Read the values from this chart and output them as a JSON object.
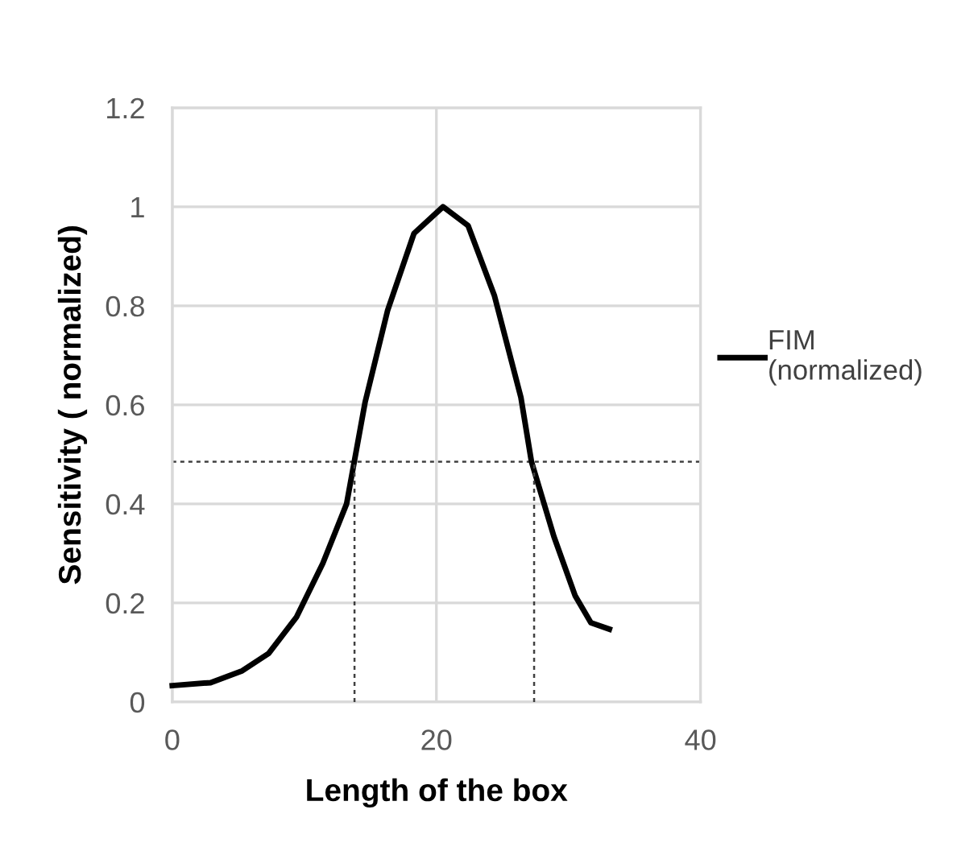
{
  "chart_data": {
    "type": "line",
    "xlabel": "Length of the box",
    "ylabel": "Sensitivity ( normalized)",
    "xlim": [
      0,
      40
    ],
    "xticks": [
      0,
      20,
      40
    ],
    "ylim": [
      0,
      1.2
    ],
    "yticks": [
      0,
      0.2,
      0.4,
      0.6,
      0.8,
      1,
      1.2
    ],
    "grid": true,
    "legend": "right",
    "marker": "none",
    "line_style": "solid",
    "series": [
      {
        "name": "FIM (normalized)",
        "color": "#000000",
        "x": [
          0,
          2.9,
          5.3,
          7.3,
          9.4,
          11.4,
          13.2,
          14.6,
          16.3,
          18.3,
          20.5,
          22.4,
          24.4,
          26.4,
          27.2,
          28.9,
          30.5,
          31.7,
          33.1
        ],
        "values": [
          0.033,
          0.039,
          0.063,
          0.098,
          0.171,
          0.28,
          0.4,
          0.605,
          0.79,
          0.946,
          1.0,
          0.962,
          0.82,
          0.615,
          0.485,
          0.334,
          0.215,
          0.16,
          0.147
        ]
      },
      {
        "color": "#404040",
        "line_style": "dotted",
        "x": [
          13.8,
          13.8
        ],
        "values": [
          0,
          0.485
        ]
      },
      {
        "color": "#404040",
        "line_style": "dotted",
        "x": [
          27.4,
          27.4
        ],
        "values": [
          0,
          0.485
        ]
      }
    ],
    "ref_lines": [
      {
        "axis": "y",
        "value": 0.485,
        "color": "#404040",
        "line_style": "dotted"
      }
    ]
  }
}
